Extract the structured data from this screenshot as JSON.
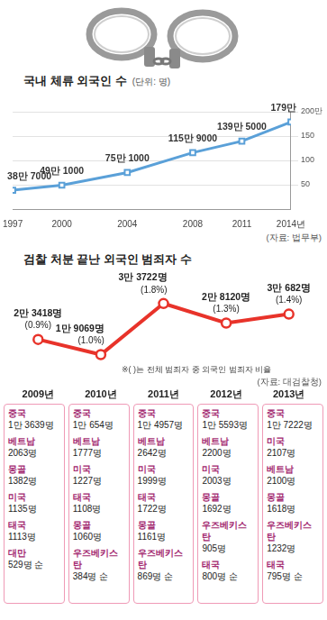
{
  "chart_data": [
    {
      "type": "line",
      "title": "국내 체류 외국인 수",
      "unit": "(단위: 명)",
      "source": "(자료: 법무부)",
      "x": [
        1997,
        2000,
        2004,
        2008,
        2011,
        2014
      ],
      "values": [
        38.7,
        49.1,
        75.1,
        115.9,
        139.5,
        179
      ],
      "value_labels": [
        "38만 7000",
        "49만 1000",
        "75만 1000",
        "115만 9000",
        "139만 5000",
        "179만"
      ],
      "xlim": [
        1997,
        2014
      ],
      "xticks": [
        1997,
        2000,
        2004,
        2008,
        2011,
        {
          "value": 2014,
          "label": "2014년"
        }
      ],
      "ylim": [
        0,
        200
      ],
      "yticks": [
        50,
        100,
        150,
        {
          "value": 200,
          "label": "200만"
        }
      ],
      "grid": true,
      "color": "#5aa0d8",
      "marker": "square",
      "data_labels": true
    },
    {
      "type": "line",
      "title": "검찰 처분 끝난 외국인 범죄자 수",
      "source": "(자료: 대검찰청)",
      "annotation": "※( )는 전체 범죄자 중 외국인 범죄자 비율",
      "categories": [
        "2009년",
        "2010년",
        "2011년",
        "2012년",
        "2013년"
      ],
      "values": [
        23418,
        19069,
        33722,
        28120,
        30682
      ],
      "value_labels": [
        "2만 3418명",
        "1만 9069명",
        "3만 3722명",
        "2만 8120명",
        "3만 682명"
      ],
      "shares": {
        "values": [
          0.9,
          1.0,
          1.8,
          1.3,
          1.4
        ],
        "labels": [
          "(0.9%)",
          "(1.0%)",
          "(1.8%)",
          "(1.3%)",
          "(1.4%)"
        ]
      },
      "ylim": [
        12000,
        36000
      ],
      "grid": false,
      "tick_labels": "x",
      "color": "#e8332a",
      "marker": "circle",
      "data_labels": true,
      "rankings": [
        [
          {
            "country": "중국",
            "count": "1만 3639명"
          },
          {
            "country": "베트남",
            "count": "2063명"
          },
          {
            "country": "몽골",
            "count": "1382명"
          },
          {
            "country": "미국",
            "count": "1135명"
          },
          {
            "country": "태국",
            "count": "1113명"
          },
          {
            "country": "대만",
            "count": "529명 순"
          }
        ],
        [
          {
            "country": "중국",
            "count": "1만 654명"
          },
          {
            "country": "베트남",
            "count": "1777명"
          },
          {
            "country": "미국",
            "count": "1227명"
          },
          {
            "country": "태국",
            "count": "1108명"
          },
          {
            "country": "몽골",
            "count": "1060명"
          },
          {
            "country": "우즈베키스탄",
            "count": "384명 순"
          }
        ],
        [
          {
            "country": "중국",
            "count": "1만 4957명"
          },
          {
            "country": "베트남",
            "count": "2642명"
          },
          {
            "country": "미국",
            "count": "1999명"
          },
          {
            "country": "태국",
            "count": "1722명"
          },
          {
            "country": "몽골",
            "count": "1161명"
          },
          {
            "country": "우즈베키스탄",
            "count": "869명 순"
          }
        ],
        [
          {
            "country": "중국",
            "count": "1만 5593명"
          },
          {
            "country": "베트남",
            "count": "2200명"
          },
          {
            "country": "미국",
            "count": "2003명"
          },
          {
            "country": "몽골",
            "count": "1692명"
          },
          {
            "country": "우즈베키스탄",
            "count": "905명"
          },
          {
            "country": "태국",
            "count": "800명 순"
          }
        ],
        [
          {
            "country": "중국",
            "count": "1만 7222명"
          },
          {
            "country": "미국",
            "count": "2107명"
          },
          {
            "country": "베트남",
            "count": "2100명"
          },
          {
            "country": "몽골",
            "count": "1618명"
          },
          {
            "country": "우즈베키스탄",
            "count": "1232명"
          },
          {
            "country": "태국",
            "count": "795명 순"
          }
        ]
      ]
    }
  ]
}
